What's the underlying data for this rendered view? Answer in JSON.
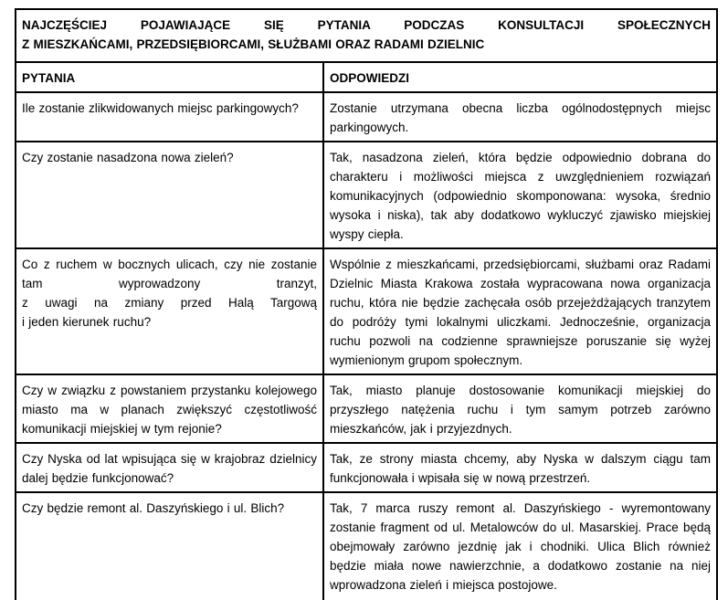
{
  "document": {
    "title": "NAJCZĘŚCIEJ POJAWIAJĄCE SIĘ PYTANIA PODCZAS KONSULTACJI SPOŁECZNYCH\nZ MIESZKAŃCAMI, PRZEDSIĘBIORCAMI, SŁUŻBAMI ORAZ RADAMI DZIELNIC",
    "table": {
      "column_headers": {
        "questions": "PYTANIA",
        "answers": "ODPOWIEDZI"
      },
      "rows": [
        {
          "question": "Ile zostanie zlikwidowanych miejsc parkingowych?",
          "answer": "Zostanie utrzymana obecna liczba ogólnodostępnych miejsc parkingowych."
        },
        {
          "question": "Czy zostanie nasadzona nowa zieleń?",
          "answer": "Tak, nasadzona zieleń, która będzie odpowiednio dobrana do charakteru i możliwości miejsca z uwzględnieniem rozwiązań komunikacyjnych (odpowiednio skomponowana: wysoka, średnio wysoka i niska), tak aby dodatkowo wykluczyć zjawisko miejskiej wyspy ciepła."
        },
        {
          "question": "Co z ruchem w bocznych ulicach, czy nie zostanie tam wyprowadzony tranzyt,\nz uwagi na zmiany przed Halą Targową\ni jeden kierunek ruchu?",
          "answer": "Wspólnie z mieszkańcami, przedsiębiorcami, służbami oraz Radami Dzielnic Miasta Krakowa została wypracowana nowa organizacja ruchu, która nie będzie zachęcała osób przejeżdżających tranzytem do podróży tymi lokalnymi uliczkami. Jednocześnie, organizacja ruchu pozwoli na codzienne sprawniejsze poruszanie się wyżej wymienionym grupom społecznym."
        },
        {
          "question": "Czy w związku z powstaniem przystanku kolejowego miasto ma w planach zwiększyć częstotliwość komunikacji miejskiej w tym rejonie?",
          "answer": "Tak, miasto planuje dostosowanie komunikacji miejskiej do przyszłego natężenia ruchu i tym samym potrzeb zarówno mieszkańców, jak i przyjezdnych."
        },
        {
          "question": "Czy Nyska od lat wpisująca się w krajobraz dzielnicy dalej będzie funkcjonować?",
          "answer": "Tak, ze strony miasta chcemy, aby Nyska w dalszym ciągu tam funkcjonowała i wpisała się w nową przestrzeń."
        },
        {
          "question": "Czy będzie remont al. Daszyńskiego i ul. Blich?",
          "answer": "Tak, 7 marca ruszy remont al. Daszyńskiego - wyremontowany zostanie fragment od ul. Metalowców do ul. Masarskiej. Prace będą obejmowały zarówno jezdnię jak i chodniki. Ulica Blich również będzie miała nowe nawierzchnie, a dodatkowo zostanie na niej wprowadzona zieleń i miejsca postojowe."
        }
      ]
    }
  },
  "colors": {
    "text": "#000000",
    "border": "#000000",
    "background": "#ffffff"
  }
}
